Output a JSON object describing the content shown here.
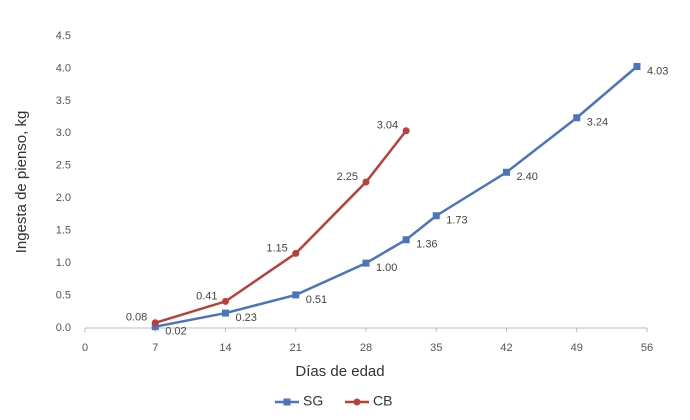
{
  "chart_data": {
    "type": "line",
    "x_label": "Días de edad",
    "y_label": "Ingesta de pienso, kg",
    "xlim": [
      0,
      56
    ],
    "xticks": [
      0,
      7,
      14,
      21,
      28,
      35,
      42,
      49,
      56
    ],
    "ylim": [
      0,
      4.5
    ],
    "yticks": [
      {
        "value": 0,
        "label": "0.0"
      },
      {
        "value": 0.5,
        "label": "0.5"
      },
      {
        "value": 1,
        "label": "1.0"
      },
      {
        "value": 1.5,
        "label": "1.5"
      },
      {
        "value": 2,
        "label": "2.0"
      },
      {
        "value": 2.5,
        "label": "2.5"
      },
      {
        "value": 3,
        "label": "3.0"
      },
      {
        "value": 3.5,
        "label": "3.5"
      },
      {
        "value": 4,
        "label": "4.0"
      },
      {
        "value": 4.5,
        "label": "4.5"
      }
    ],
    "grid": false,
    "legend": "bottom",
    "series": [
      {
        "name": "SG",
        "color": "#4a74bd",
        "marker": "square",
        "x": [
          7,
          14,
          21,
          28,
          32,
          35,
          42,
          49,
          55
        ],
        "values": [
          0.02,
          0.23,
          0.51,
          1.0,
          1.36,
          1.73,
          2.4,
          3.24,
          4.03
        ],
        "value_labels": [
          "0.02",
          "0.23",
          "0.51",
          "1.00",
          "1.36",
          "1.73",
          "2.40",
          "3.24",
          "4.03"
        ]
      },
      {
        "name": "CB",
        "color": "#b8403a",
        "marker": "circle",
        "x": [
          7,
          14,
          21,
          28,
          32
        ],
        "values": [
          0.08,
          0.41,
          1.15,
          2.25,
          3.04
        ],
        "value_labels": [
          "0.08",
          "0.41",
          "1.15",
          "2.25",
          "3.04"
        ]
      }
    ]
  }
}
